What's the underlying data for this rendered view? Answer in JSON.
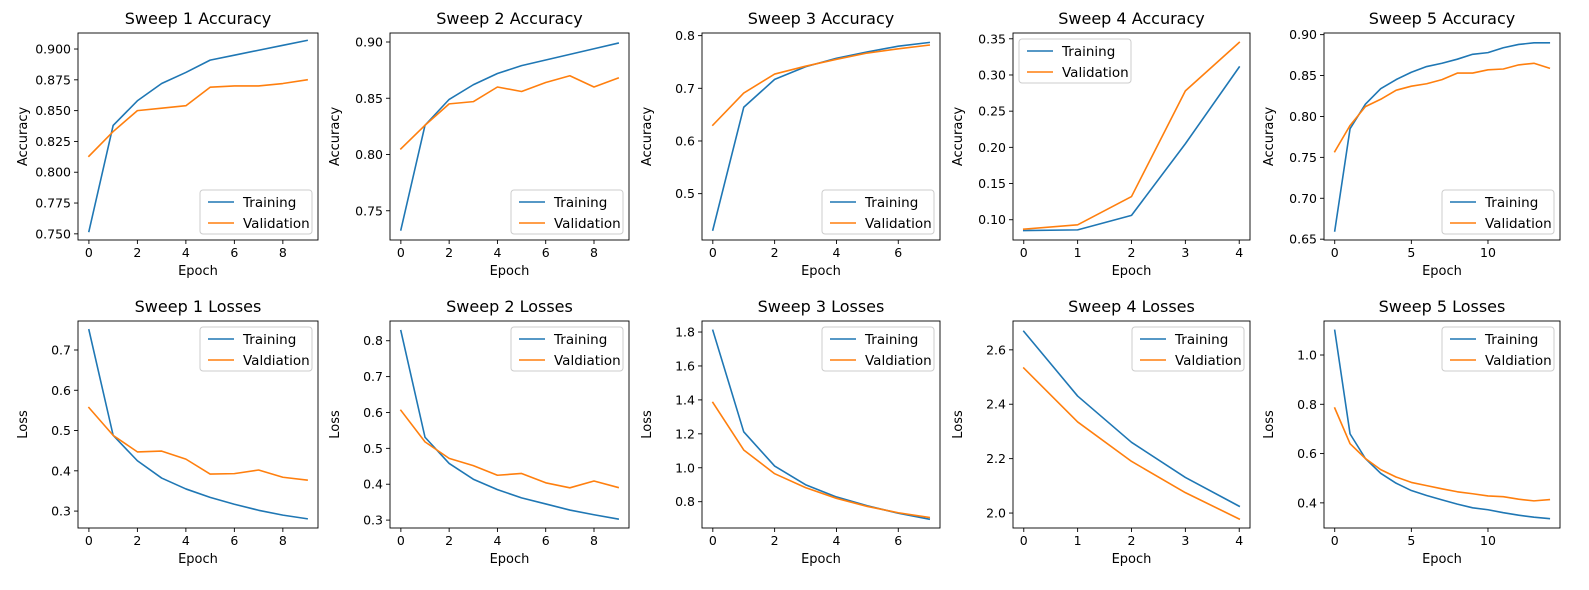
{
  "colors": {
    "training": "#1f77b4",
    "validation": "#ff7f0e"
  },
  "chart_data": [
    {
      "type": "line",
      "title": "Sweep 1 Accuracy",
      "xlabel": "Epoch",
      "ylabel": "Accuracy",
      "x": [
        0,
        1,
        2,
        3,
        4,
        5,
        6,
        7,
        8,
        9
      ],
      "xticks": [
        0,
        2,
        4,
        6,
        8
      ],
      "yticks": [
        0.75,
        0.775,
        0.8,
        0.825,
        0.85,
        0.875,
        0.9
      ],
      "ytick_decimals": 3,
      "xlim": [
        -0.45,
        9.45
      ],
      "ylim": [
        0.745,
        0.913
      ],
      "legend": "lower right",
      "series": [
        {
          "name": "Training",
          "color": "training",
          "values": [
            0.752,
            0.838,
            0.858,
            0.872,
            0.881,
            0.891,
            0.895,
            0.899,
            0.903,
            0.907
          ]
        },
        {
          "name": "Validation",
          "color": "validation",
          "values": [
            0.813,
            0.833,
            0.85,
            0.852,
            0.854,
            0.869,
            0.87,
            0.87,
            0.872,
            0.875
          ]
        }
      ]
    },
    {
      "type": "line",
      "title": "Sweep 2 Accuracy",
      "xlabel": "Epoch",
      "ylabel": "Accuracy",
      "x": [
        0,
        1,
        2,
        3,
        4,
        5,
        6,
        7,
        8,
        9
      ],
      "xticks": [
        0,
        2,
        4,
        6,
        8
      ],
      "yticks": [
        0.75,
        0.8,
        0.85,
        0.9
      ],
      "ytick_decimals": 2,
      "xlim": [
        -0.45,
        9.45
      ],
      "ylim": [
        0.724,
        0.908
      ],
      "legend": "lower right",
      "series": [
        {
          "name": "Training",
          "color": "training",
          "values": [
            0.733,
            0.826,
            0.849,
            0.862,
            0.872,
            0.879,
            0.884,
            0.889,
            0.894,
            0.899
          ]
        },
        {
          "name": "Validation",
          "color": "validation",
          "values": [
            0.805,
            0.826,
            0.845,
            0.847,
            0.86,
            0.856,
            0.864,
            0.87,
            0.86,
            0.868
          ]
        }
      ]
    },
    {
      "type": "line",
      "title": "Sweep 3 Accuracy",
      "xlabel": "Epoch",
      "ylabel": "Accuracy",
      "x": [
        0,
        1,
        2,
        3,
        4,
        5,
        6,
        7
      ],
      "xticks": [
        0,
        2,
        4,
        6
      ],
      "yticks": [
        0.5,
        0.6,
        0.7,
        0.8
      ],
      "ytick_decimals": 1,
      "xlim": [
        -0.35,
        7.35
      ],
      "ylim": [
        0.412,
        0.805
      ],
      "legend": "lower right",
      "series": [
        {
          "name": "Training",
          "color": "training",
          "values": [
            0.431,
            0.664,
            0.717,
            0.741,
            0.757,
            0.769,
            0.78,
            0.787
          ]
        },
        {
          "name": "Validation",
          "color": "validation",
          "values": [
            0.63,
            0.691,
            0.727,
            0.742,
            0.755,
            0.767,
            0.775,
            0.782
          ]
        }
      ]
    },
    {
      "type": "line",
      "title": "Sweep 4 Accuracy",
      "xlabel": "Epoch",
      "ylabel": "Accuracy",
      "x": [
        0,
        1,
        2,
        3,
        4
      ],
      "xticks": [
        0,
        1,
        2,
        3,
        4
      ],
      "yticks": [
        0.1,
        0.15,
        0.2,
        0.25,
        0.3,
        0.35
      ],
      "ytick_decimals": 2,
      "xlim": [
        -0.2,
        4.2
      ],
      "ylim": [
        0.072,
        0.358
      ],
      "legend": "upper left",
      "series": [
        {
          "name": "Training",
          "color": "training",
          "values": [
            0.085,
            0.086,
            0.106,
            0.205,
            0.311
          ]
        },
        {
          "name": "Validation",
          "color": "validation",
          "values": [
            0.087,
            0.093,
            0.132,
            0.278,
            0.345
          ]
        }
      ]
    },
    {
      "type": "line",
      "title": "Sweep 5 Accuracy",
      "xlabel": "Epoch",
      "ylabel": "Accuracy",
      "x": [
        0,
        1,
        2,
        3,
        4,
        5,
        6,
        7,
        8,
        9,
        10,
        11,
        12,
        13,
        14
      ],
      "xticks": [
        0,
        5,
        10
      ],
      "yticks": [
        0.65,
        0.7,
        0.75,
        0.8,
        0.85,
        0.9
      ],
      "ytick_decimals": 2,
      "xlim": [
        -0.7,
        14.7
      ],
      "ylim": [
        0.649,
        0.902
      ],
      "legend": "lower right",
      "series": [
        {
          "name": "Training",
          "color": "training",
          "values": [
            0.66,
            0.785,
            0.815,
            0.834,
            0.845,
            0.854,
            0.861,
            0.865,
            0.87,
            0.876,
            0.878,
            0.884,
            0.888,
            0.89,
            0.89
          ]
        },
        {
          "name": "Validation",
          "color": "validation",
          "values": [
            0.757,
            0.789,
            0.812,
            0.821,
            0.832,
            0.837,
            0.84,
            0.845,
            0.853,
            0.853,
            0.857,
            0.858,
            0.863,
            0.865,
            0.859
          ]
        }
      ]
    },
    {
      "type": "line",
      "title": "Sweep 1 Losses",
      "xlabel": "Epoch",
      "ylabel": "Loss",
      "x": [
        0,
        1,
        2,
        3,
        4,
        5,
        6,
        7,
        8,
        9
      ],
      "xticks": [
        0,
        2,
        4,
        6,
        8
      ],
      "yticks": [
        0.3,
        0.4,
        0.5,
        0.6,
        0.7
      ],
      "ytick_decimals": 1,
      "xlim": [
        -0.45,
        9.45
      ],
      "ylim": [
        0.258,
        0.772
      ],
      "legend": "upper right",
      "series": [
        {
          "name": "Training",
          "color": "training",
          "values": [
            0.75,
            0.488,
            0.425,
            0.382,
            0.355,
            0.334,
            0.317,
            0.302,
            0.29,
            0.281
          ]
        },
        {
          "name": "Valdiation",
          "color": "validation",
          "values": [
            0.557,
            0.488,
            0.447,
            0.449,
            0.429,
            0.392,
            0.393,
            0.402,
            0.384,
            0.377
          ]
        }
      ]
    },
    {
      "type": "line",
      "title": "Sweep 2 Losses",
      "xlabel": "Epoch",
      "ylabel": "Loss",
      "x": [
        0,
        1,
        2,
        3,
        4,
        5,
        6,
        7,
        8,
        9
      ],
      "xticks": [
        0,
        2,
        4,
        6,
        8
      ],
      "yticks": [
        0.3,
        0.4,
        0.5,
        0.6,
        0.7,
        0.8
      ],
      "ytick_decimals": 1,
      "xlim": [
        -0.45,
        9.45
      ],
      "ylim": [
        0.278,
        0.855
      ],
      "legend": "upper right",
      "series": [
        {
          "name": "Training",
          "color": "training",
          "values": [
            0.828,
            0.531,
            0.458,
            0.414,
            0.385,
            0.362,
            0.345,
            0.328,
            0.315,
            0.303
          ]
        },
        {
          "name": "Valdiation",
          "color": "validation",
          "values": [
            0.606,
            0.518,
            0.472,
            0.452,
            0.425,
            0.43,
            0.404,
            0.39,
            0.409,
            0.391
          ]
        }
      ]
    },
    {
      "type": "line",
      "title": "Sweep 3 Losses",
      "xlabel": "Epoch",
      "ylabel": "Loss",
      "x": [
        0,
        1,
        2,
        3,
        4,
        5,
        6,
        7
      ],
      "xticks": [
        0,
        2,
        4,
        6
      ],
      "yticks": [
        0.8,
        1.0,
        1.2,
        1.4,
        1.6,
        1.8
      ],
      "ytick_decimals": 1,
      "xlim": [
        -0.35,
        7.35
      ],
      "ylim": [
        0.645,
        1.865
      ],
      "legend": "upper right",
      "series": [
        {
          "name": "Training",
          "color": "training",
          "values": [
            1.81,
            1.212,
            1.01,
            0.9,
            0.828,
            0.776,
            0.732,
            0.697
          ]
        },
        {
          "name": "Valdiation",
          "color": "validation",
          "values": [
            1.385,
            1.105,
            0.965,
            0.883,
            0.82,
            0.772,
            0.735,
            0.707
          ]
        }
      ]
    },
    {
      "type": "line",
      "title": "Sweep 4 Losses",
      "xlabel": "Epoch",
      "ylabel": "Loss",
      "x": [
        0,
        1,
        2,
        3,
        4
      ],
      "xticks": [
        0,
        1,
        2,
        3,
        4
      ],
      "yticks": [
        2.0,
        2.2,
        2.4,
        2.6
      ],
      "ytick_decimals": 1,
      "xlim": [
        -0.2,
        4.2
      ],
      "ylim": [
        1.945,
        2.706
      ],
      "legend": "upper right",
      "series": [
        {
          "name": "Training",
          "color": "training",
          "values": [
            2.668,
            2.43,
            2.26,
            2.131,
            2.025
          ]
        },
        {
          "name": "Valdiation",
          "color": "validation",
          "values": [
            2.533,
            2.335,
            2.19,
            2.075,
            1.978
          ]
        }
      ]
    },
    {
      "type": "line",
      "title": "Sweep 5 Losses",
      "xlabel": "Epoch",
      "ylabel": "Loss",
      "x": [
        0,
        1,
        2,
        3,
        4,
        5,
        6,
        7,
        8,
        9,
        10,
        11,
        12,
        13,
        14
      ],
      "xticks": [
        0,
        5,
        10
      ],
      "yticks": [
        0.4,
        0.6,
        0.8,
        1.0
      ],
      "ytick_decimals": 1,
      "xlim": [
        -0.7,
        14.7
      ],
      "ylim": [
        0.298,
        1.138
      ],
      "legend": "upper right",
      "series": [
        {
          "name": "Training",
          "color": "training",
          "values": [
            1.1,
            0.68,
            0.58,
            0.52,
            0.48,
            0.45,
            0.43,
            0.412,
            0.395,
            0.38,
            0.372,
            0.36,
            0.35,
            0.342,
            0.336
          ]
        },
        {
          "name": "Valdiation",
          "color": "validation",
          "values": [
            0.785,
            0.64,
            0.58,
            0.535,
            0.505,
            0.483,
            0.47,
            0.457,
            0.445,
            0.437,
            0.428,
            0.425,
            0.415,
            0.408,
            0.413
          ]
        }
      ]
    }
  ]
}
